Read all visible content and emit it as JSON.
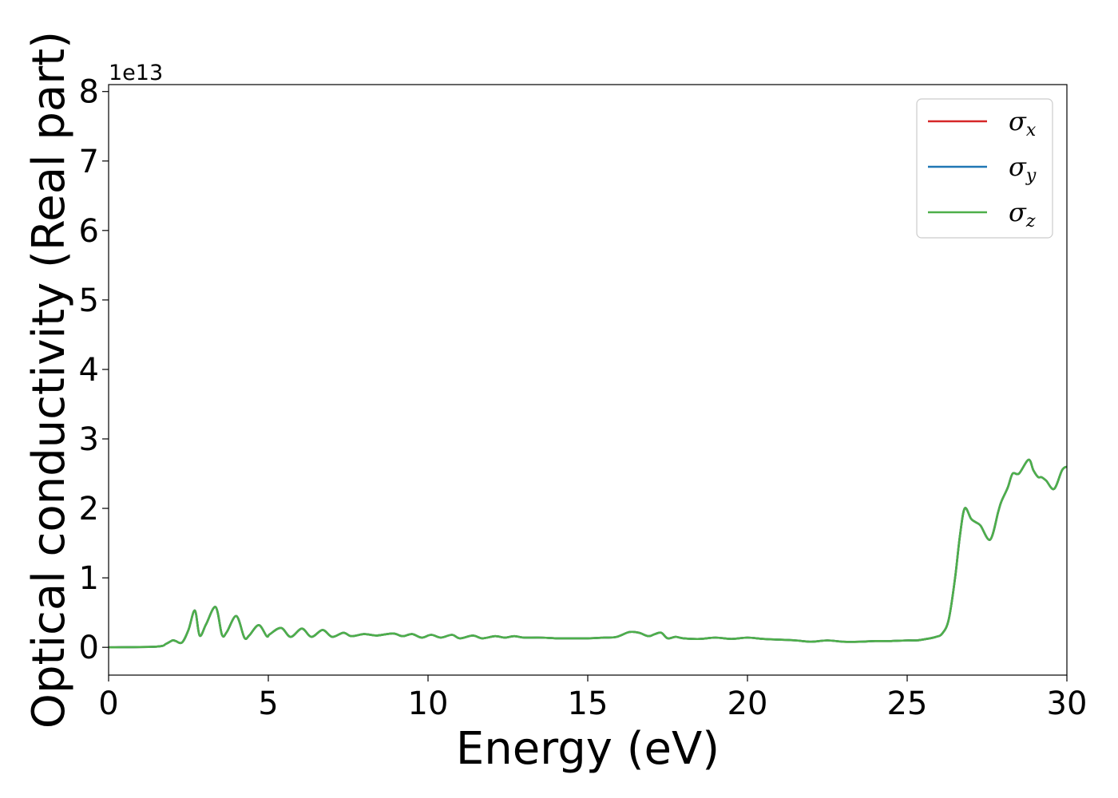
{
  "chart_data": {
    "type": "line",
    "xlabel": "Energy (eV)",
    "ylabel": "Optical conductivity (Real part)",
    "y_offset_label": "1e13",
    "xlim": [
      0,
      30
    ],
    "ylim": [
      -0.4,
      8.1
    ],
    "x_ticks": [
      "0",
      "5",
      "10",
      "15",
      "20",
      "25",
      "30"
    ],
    "y_ticks": [
      "0",
      "1",
      "2",
      "3",
      "4",
      "5",
      "6",
      "7",
      "8"
    ],
    "legend_position": "top-right",
    "grid": false,
    "x": [
      0,
      1.5,
      1.8,
      2.0,
      2.1,
      2.3,
      2.5,
      2.7,
      2.85,
      3.05,
      3.35,
      3.55,
      3.7,
      4.0,
      4.25,
      4.4,
      4.7,
      4.95,
      5.05,
      5.4,
      5.7,
      6.05,
      6.35,
      6.7,
      7.0,
      7.35,
      7.6,
      8.0,
      8.4,
      8.9,
      9.2,
      9.5,
      9.8,
      10.1,
      10.4,
      10.75,
      11.0,
      11.4,
      11.7,
      12.1,
      12.4,
      12.7,
      13.0,
      13.5,
      14.0,
      14.5,
      15.0,
      15.5,
      15.9,
      16.3,
      16.6,
      16.9,
      17.1,
      17.3,
      17.5,
      17.75,
      18.0,
      18.5,
      19.0,
      19.5,
      20.0,
      20.5,
      21.0,
      21.5,
      22.0,
      22.5,
      23.0,
      23.5,
      24.0,
      24.5,
      25.0,
      25.3,
      25.6,
      25.9,
      26.1,
      26.3,
      26.5,
      26.65,
      26.8,
      27.0,
      27.15,
      27.3,
      27.6,
      27.85,
      27.95,
      28.15,
      28.3,
      28.5,
      28.8,
      28.95,
      29.1,
      29.2,
      29.35,
      29.6,
      29.85,
      30.0
    ],
    "series": [
      {
        "name": "σ_x",
        "color": "#d62728",
        "values": [
          0.0,
          0.01,
          0.05,
          0.1,
          0.09,
          0.07,
          0.25,
          0.53,
          0.17,
          0.33,
          0.58,
          0.18,
          0.22,
          0.45,
          0.14,
          0.17,
          0.32,
          0.16,
          0.19,
          0.28,
          0.15,
          0.27,
          0.15,
          0.25,
          0.15,
          0.21,
          0.16,
          0.19,
          0.17,
          0.2,
          0.16,
          0.19,
          0.14,
          0.18,
          0.14,
          0.18,
          0.13,
          0.17,
          0.13,
          0.16,
          0.14,
          0.16,
          0.14,
          0.14,
          0.13,
          0.13,
          0.13,
          0.14,
          0.15,
          0.22,
          0.21,
          0.16,
          0.19,
          0.21,
          0.13,
          0.15,
          0.13,
          0.12,
          0.14,
          0.12,
          0.14,
          0.12,
          0.11,
          0.1,
          0.08,
          0.1,
          0.08,
          0.08,
          0.09,
          0.09,
          0.1,
          0.1,
          0.12,
          0.15,
          0.2,
          0.4,
          1.0,
          1.6,
          2.0,
          1.85,
          1.8,
          1.75,
          1.55,
          1.95,
          2.1,
          2.3,
          2.5,
          2.5,
          2.7,
          2.55,
          2.45,
          2.45,
          2.4,
          2.28,
          2.55,
          2.6
        ]
      },
      {
        "name": "σ_y",
        "color": "#1f77b4",
        "values": [
          0.0,
          0.01,
          0.05,
          0.1,
          0.09,
          0.07,
          0.25,
          0.53,
          0.17,
          0.33,
          0.58,
          0.18,
          0.22,
          0.45,
          0.14,
          0.17,
          0.32,
          0.16,
          0.19,
          0.28,
          0.15,
          0.27,
          0.15,
          0.25,
          0.15,
          0.21,
          0.16,
          0.19,
          0.17,
          0.2,
          0.16,
          0.19,
          0.14,
          0.18,
          0.14,
          0.18,
          0.13,
          0.17,
          0.13,
          0.16,
          0.14,
          0.16,
          0.14,
          0.14,
          0.13,
          0.13,
          0.13,
          0.14,
          0.15,
          0.22,
          0.21,
          0.16,
          0.19,
          0.21,
          0.13,
          0.15,
          0.13,
          0.12,
          0.14,
          0.12,
          0.14,
          0.12,
          0.11,
          0.1,
          0.08,
          0.1,
          0.08,
          0.08,
          0.09,
          0.09,
          0.1,
          0.1,
          0.12,
          0.15,
          0.2,
          0.4,
          1.0,
          1.6,
          2.0,
          1.85,
          1.8,
          1.75,
          1.55,
          1.95,
          2.1,
          2.3,
          2.5,
          2.5,
          2.7,
          2.55,
          2.45,
          2.45,
          2.4,
          2.28,
          2.55,
          2.6
        ]
      },
      {
        "name": "σ_z",
        "color": "#4daf4a",
        "values": [
          0.0,
          0.01,
          0.05,
          0.1,
          0.09,
          0.07,
          0.25,
          0.53,
          0.17,
          0.33,
          0.58,
          0.18,
          0.22,
          0.45,
          0.14,
          0.17,
          0.32,
          0.16,
          0.19,
          0.28,
          0.15,
          0.27,
          0.15,
          0.25,
          0.15,
          0.21,
          0.16,
          0.19,
          0.17,
          0.2,
          0.16,
          0.19,
          0.14,
          0.18,
          0.14,
          0.18,
          0.13,
          0.17,
          0.13,
          0.16,
          0.14,
          0.16,
          0.14,
          0.14,
          0.13,
          0.13,
          0.13,
          0.14,
          0.15,
          0.22,
          0.21,
          0.16,
          0.19,
          0.21,
          0.13,
          0.15,
          0.13,
          0.12,
          0.14,
          0.12,
          0.14,
          0.12,
          0.11,
          0.1,
          0.08,
          0.1,
          0.08,
          0.08,
          0.09,
          0.09,
          0.1,
          0.1,
          0.12,
          0.15,
          0.2,
          0.4,
          1.0,
          1.6,
          2.0,
          1.85,
          1.8,
          1.75,
          1.55,
          1.95,
          2.1,
          2.3,
          2.5,
          2.5,
          2.7,
          2.55,
          2.45,
          2.45,
          2.4,
          2.28,
          2.55,
          2.6
        ]
      }
    ],
    "legend": [
      {
        "symbol": "σ",
        "sub": "x"
      },
      {
        "symbol": "σ",
        "sub": "y"
      },
      {
        "symbol": "σ",
        "sub": "z"
      }
    ]
  }
}
